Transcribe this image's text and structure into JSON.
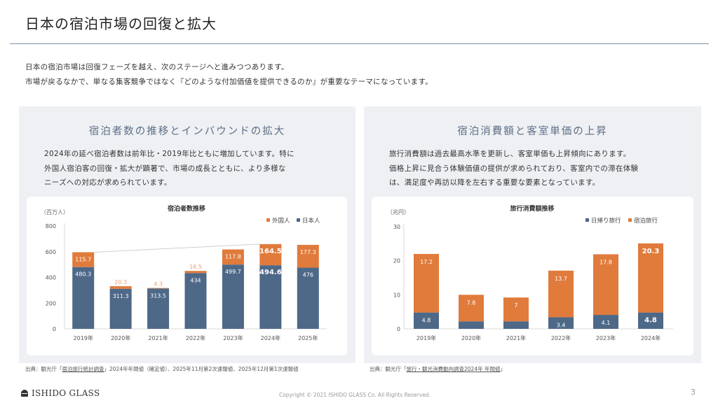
{
  "header": {
    "title": "日本の宿泊市場の回復と拡大"
  },
  "intro": {
    "line1": "日本の宿泊市場は回復フェーズを越え、次のステージへと進みつつあります。",
    "line2": "市場が戻るなかで、単なる集客競争ではなく『どのような付加価値を提供できるのか』が重要なテーマになっています。"
  },
  "left_panel": {
    "title": "宿泊者数の推移とインバウンドの拡大",
    "text_lines": [
      "2024年の延べ宿泊者数は前年比・2019年比ともに増加しています。特に",
      "外国人宿泊客の回復・拡大が顕著で、市場の成長とともに、より多様な",
      "ニーズへの対応が求められています。"
    ],
    "source_prefix": "出典：観光庁「",
    "source_link": "宿泊旅行統計調査",
    "source_suffix": "」2024年年間値（確定値）、2025年11月第2次速報値、2025年12月第1次速報値"
  },
  "right_panel": {
    "title": "宿泊消費額と客室単価の上昇",
    "text_lines": [
      "旅行消費額は過去最高水準を更新し、客室単価も上昇傾向にあります。",
      "価格上昇に見合う体験価値の提供が求められており、客室内での滞在体験",
      "は、満足度や再訪以降を左右する重要な要素となっています。"
    ],
    "source_prefix": "出典：観光庁「",
    "source_link": "旅行・観光消費動向調査2024年 年間値",
    "source_suffix": "」"
  },
  "colors": {
    "domestic": "#4e6887",
    "foreign": "#e07b3c",
    "panel_bg": "#eef0f4",
    "accent_title": "#5d6f86"
  },
  "chart_data": [
    {
      "type": "bar",
      "stacked": true,
      "title": "宿泊者数推移",
      "ylabel": "（百万人）",
      "xlabel": "",
      "ylim": [
        0,
        800
      ],
      "yticks": [
        0,
        200,
        400,
        600,
        800
      ],
      "categories": [
        "2019年",
        "2020年",
        "2021年",
        "2022年",
        "2023年",
        "2024年",
        "2025年"
      ],
      "series": [
        {
          "name": "日本人",
          "color": "#4e6887",
          "values": [
            480.3,
            311.3,
            313.5,
            434,
            499.7,
            494.6,
            476
          ]
        },
        {
          "name": "外国人",
          "color": "#e07b3c",
          "values": [
            115.7,
            20.3,
            4.3,
            16.5,
            117.8,
            164.5,
            177.3
          ]
        }
      ],
      "legend": [
        "外国人",
        "日本人"
      ],
      "legend_position": "top-right",
      "highlight_category": "2024年",
      "reference_line": {
        "from": "2019年",
        "to": "2024年"
      },
      "grid": false
    },
    {
      "type": "bar",
      "stacked": true,
      "title": "旅行消費額推移",
      "ylabel": "（兆円）",
      "xlabel": "",
      "ylim": [
        0,
        30
      ],
      "yticks": [
        0,
        10,
        20,
        30
      ],
      "categories": [
        "2019年",
        "2020年",
        "2021年",
        "2022年",
        "2023年",
        "2024年"
      ],
      "series": [
        {
          "name": "日帰り旅行",
          "color": "#4e6887",
          "values": [
            4.8,
            2.2,
            2.2,
            3.4,
            4.1,
            4.8
          ]
        },
        {
          "name": "宿泊旅行",
          "color": "#e07b3c",
          "values": [
            17.2,
            7.8,
            7,
            13.7,
            17.8,
            20.3
          ]
        }
      ],
      "legend": [
        "日帰り旅行",
        "宿泊旅行"
      ],
      "legend_position": "top-right",
      "highlight_category": "2024年",
      "grid": false
    }
  ],
  "footer": {
    "logo_text": "ISHIDO GLASS",
    "copyright": "Copyright © 2021 ISHIDO GLASS Co. All Rights Reserved.",
    "page_number": "3"
  }
}
